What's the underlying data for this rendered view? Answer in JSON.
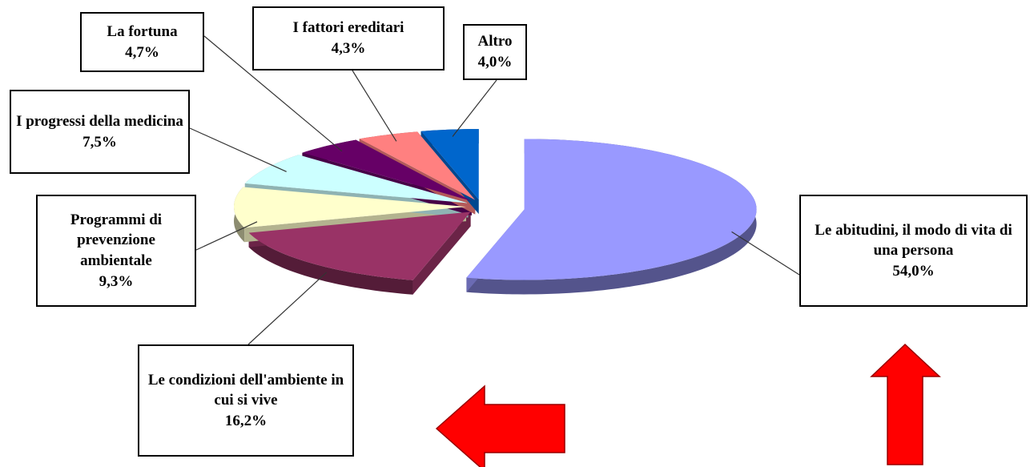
{
  "chart_data": {
    "type": "pie",
    "categories": [
      "Le abitudini, il modo di vita di una persona",
      "Le condizioni dell'ambiente in cui si vive",
      "Programmi di prevenzione ambientale",
      "I progressi della medicina",
      "La fortuna",
      "I fattori ereditari",
      "Altro"
    ],
    "values": [
      54.0,
      16.2,
      9.3,
      7.5,
      4.7,
      4.3,
      4.0
    ],
    "value_labels": [
      "54,0%",
      "16,2%",
      "9,3%",
      "7,5%",
      "4,7%",
      "4,3%",
      "4,0%"
    ],
    "colors": [
      "#9999ff",
      "#993366",
      "#ffffcc",
      "#ccffff",
      "#660066",
      "#ff8080",
      "#0066cc"
    ]
  }
}
